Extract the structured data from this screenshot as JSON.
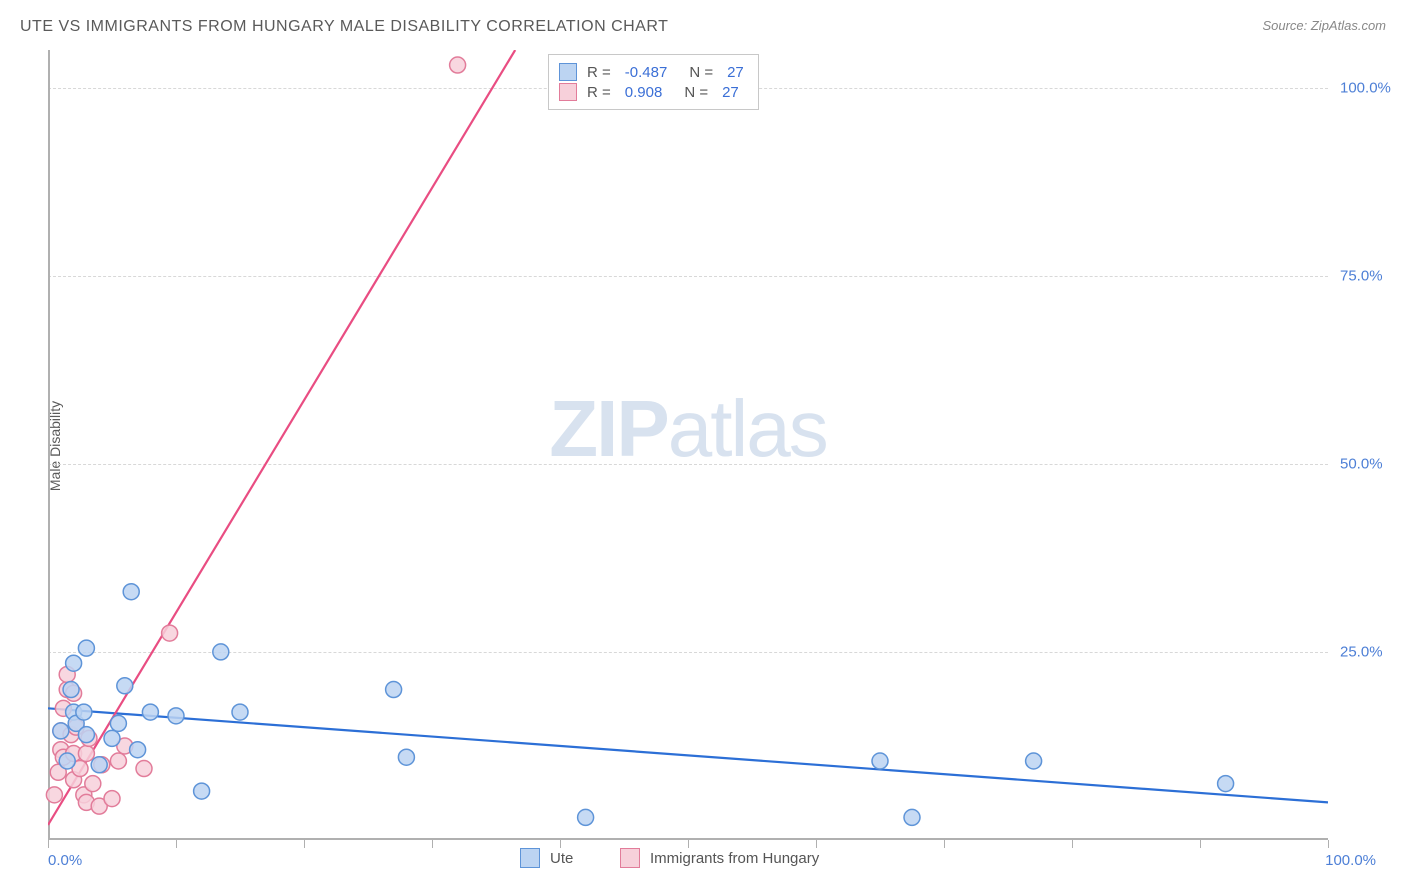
{
  "title": "UTE VS IMMIGRANTS FROM HUNGARY MALE DISABILITY CORRELATION CHART",
  "source": "Source: ZipAtlas.com",
  "ylabel": "Male Disability",
  "watermark_zip": "ZIP",
  "watermark_atlas": "atlas",
  "chart": {
    "type": "scatter",
    "xlim": [
      0,
      100
    ],
    "ylim": [
      0,
      105
    ],
    "y_ticks": [
      25,
      50,
      75,
      100
    ],
    "y_tick_labels": [
      "25.0%",
      "50.0%",
      "75.0%",
      "100.0%"
    ],
    "x_ticks": [
      0,
      10,
      20,
      30,
      40,
      50,
      60,
      70,
      80,
      90,
      100
    ],
    "x_min_label": "0.0%",
    "x_max_label": "100.0%",
    "background_color": "#ffffff",
    "grid_color": "#d8d8d8",
    "axis_color": "#b0b0b0",
    "tick_label_color": "#4d7fd6",
    "marker_radius": 8,
    "marker_stroke_width": 1.5,
    "trend_line_width": 2.2,
    "series": [
      {
        "name": "Ute",
        "fill_color": "#bcd4f2",
        "stroke_color": "#5e94d8",
        "line_color": "#2c6fd6",
        "R": -0.487,
        "N": 27,
        "trend": {
          "x1": 0,
          "y1": 17.5,
          "x2": 100,
          "y2": 5.0
        },
        "points": [
          {
            "x": 1.5,
            "y": 10.5
          },
          {
            "x": 1.0,
            "y": 14.5
          },
          {
            "x": 2.0,
            "y": 17.0
          },
          {
            "x": 2.2,
            "y": 15.5
          },
          {
            "x": 1.8,
            "y": 20.0
          },
          {
            "x": 2.0,
            "y": 23.5
          },
          {
            "x": 3.0,
            "y": 25.5
          },
          {
            "x": 2.8,
            "y": 17.0
          },
          {
            "x": 3.0,
            "y": 14.0
          },
          {
            "x": 4.0,
            "y": 10.0
          },
          {
            "x": 5.0,
            "y": 13.5
          },
          {
            "x": 5.5,
            "y": 15.5
          },
          {
            "x": 6.0,
            "y": 20.5
          },
          {
            "x": 6.5,
            "y": 33.0
          },
          {
            "x": 7.0,
            "y": 12.0
          },
          {
            "x": 8.0,
            "y": 17.0
          },
          {
            "x": 10.0,
            "y": 16.5
          },
          {
            "x": 12.0,
            "y": 6.5
          },
          {
            "x": 13.5,
            "y": 25.0
          },
          {
            "x": 15.0,
            "y": 17.0
          },
          {
            "x": 27.0,
            "y": 20.0
          },
          {
            "x": 28.0,
            "y": 11.0
          },
          {
            "x": 42.0,
            "y": 3.0
          },
          {
            "x": 65.0,
            "y": 10.5
          },
          {
            "x": 67.5,
            "y": 3.0
          },
          {
            "x": 77.0,
            "y": 10.5
          },
          {
            "x": 92.0,
            "y": 7.5
          }
        ]
      },
      {
        "name": "Immigrants from Hungary",
        "fill_color": "#f7d0da",
        "stroke_color": "#e27c9a",
        "line_color": "#e94d82",
        "R": 0.908,
        "N": 27,
        "trend": {
          "x1": 0,
          "y1": 2.0,
          "x2": 36.5,
          "y2": 105.0
        },
        "points": [
          {
            "x": 0.5,
            "y": 6.0
          },
          {
            "x": 0.8,
            "y": 9.0
          },
          {
            "x": 1.0,
            "y": 12.0
          },
          {
            "x": 1.0,
            "y": 14.5
          },
          {
            "x": 1.2,
            "y": 11.0
          },
          {
            "x": 1.2,
            "y": 17.5
          },
          {
            "x": 1.5,
            "y": 20.0
          },
          {
            "x": 1.5,
            "y": 22.0
          },
          {
            "x": 1.8,
            "y": 14.0
          },
          {
            "x": 2.0,
            "y": 8.0
          },
          {
            "x": 2.0,
            "y": 11.5
          },
          {
            "x": 2.0,
            "y": 19.5
          },
          {
            "x": 2.2,
            "y": 15.0
          },
          {
            "x": 2.5,
            "y": 9.5
          },
          {
            "x": 2.8,
            "y": 6.0
          },
          {
            "x": 3.0,
            "y": 5.0
          },
          {
            "x": 3.0,
            "y": 11.5
          },
          {
            "x": 3.2,
            "y": 13.5
          },
          {
            "x": 3.5,
            "y": 7.5
          },
          {
            "x": 4.0,
            "y": 4.5
          },
          {
            "x": 4.2,
            "y": 10.0
          },
          {
            "x": 5.0,
            "y": 5.5
          },
          {
            "x": 5.5,
            "y": 10.5
          },
          {
            "x": 6.0,
            "y": 12.5
          },
          {
            "x": 7.5,
            "y": 9.5
          },
          {
            "x": 9.5,
            "y": 27.5
          },
          {
            "x": 32.0,
            "y": 103.0
          }
        ]
      }
    ]
  },
  "correlation_box": {
    "rows": [
      {
        "r_label": "R =",
        "r_value": "-0.487",
        "n_label": "N =",
        "n_value": "27"
      },
      {
        "r_label": "R =",
        "r_value": " 0.908",
        "n_label": "N =",
        "n_value": "27"
      }
    ]
  },
  "legend": {
    "series1": "Ute",
    "series2": "Immigrants from Hungary"
  }
}
